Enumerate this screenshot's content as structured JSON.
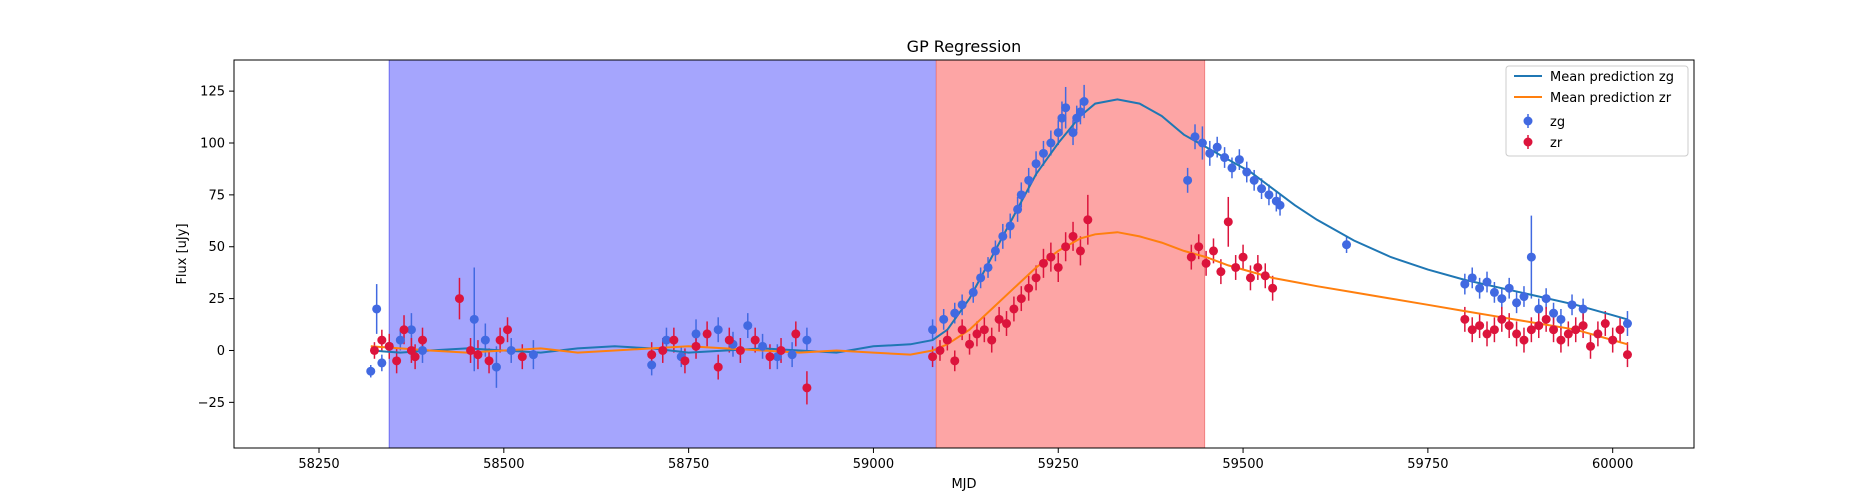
{
  "chart_data": {
    "type": "scatter",
    "title": "GP Regression",
    "xlabel": "MJD",
    "ylabel": "Flux [uJy]",
    "xlim": [
      58135,
      60110
    ],
    "ylim": [
      -47,
      140
    ],
    "xticks": [
      58250,
      58500,
      58750,
      59000,
      59250,
      59500,
      59750,
      60000
    ],
    "yticks": [
      -25,
      0,
      25,
      50,
      75,
      100,
      125
    ],
    "grid": false,
    "legend_position": "top-right",
    "colors": {
      "zg_line": "#1f77b4",
      "zr_line": "#ff7f0e",
      "zg_points": "#4169e1",
      "zr_points": "#dc143c",
      "band_blue": "#a5a5fd",
      "band_red": "#fda5a5",
      "band_overlap": "#c36aa6"
    },
    "shaded_regions": [
      {
        "x": [
          58345,
          59085
        ],
        "color": "blue"
      },
      {
        "x": [
          59085,
          59448
        ],
        "color": "red"
      }
    ],
    "series": [
      {
        "name": "Mean prediction zg",
        "kind": "line",
        "x": [
          58320,
          58360,
          58400,
          58450,
          58500,
          58550,
          58600,
          58650,
          58700,
          58750,
          58800,
          58850,
          58900,
          58950,
          59000,
          59050,
          59080,
          59100,
          59130,
          59160,
          59190,
          59220,
          59250,
          59280,
          59300,
          59330,
          59360,
          59390,
          59420,
          59450,
          59480,
          59510,
          59540,
          59570,
          59600,
          59650,
          59700,
          59750,
          59800,
          59850,
          59900,
          59950,
          60000,
          60020
        ],
        "y": [
          0,
          -1,
          0,
          1,
          0,
          -1,
          1,
          2,
          1,
          -1,
          0,
          1,
          0,
          -1,
          2,
          3,
          5,
          10,
          25,
          45,
          65,
          85,
          100,
          113,
          119,
          121,
          119,
          113,
          104,
          98,
          92,
          86,
          78,
          70,
          63,
          53,
          45,
          39,
          34,
          30,
          26,
          22,
          17,
          15
        ]
      },
      {
        "name": "Mean prediction zr",
        "kind": "line",
        "x": [
          58320,
          58360,
          58400,
          58450,
          58500,
          58550,
          58600,
          58650,
          58700,
          58750,
          58800,
          58850,
          58900,
          58950,
          59000,
          59050,
          59080,
          59100,
          59130,
          59160,
          59190,
          59220,
          59250,
          59280,
          59300,
          59330,
          59360,
          59390,
          59420,
          59450,
          59480,
          59510,
          59540,
          59570,
          59600,
          59650,
          59700,
          59750,
          59800,
          59850,
          59900,
          59950,
          60000,
          60020
        ],
        "y": [
          2,
          1,
          0,
          -1,
          0,
          1,
          -1,
          0,
          1,
          2,
          1,
          0,
          -1,
          0,
          -1,
          -2,
          0,
          3,
          10,
          20,
          30,
          40,
          48,
          54,
          56,
          57,
          55,
          52,
          48,
          45,
          41,
          38,
          35,
          33,
          31,
          28,
          25,
          22,
          19,
          16,
          13,
          10,
          5,
          3
        ]
      },
      {
        "name": "zg",
        "kind": "errorbar",
        "x": [
          58320,
          58328,
          58335,
          58345,
          58360,
          58375,
          58390,
          58460,
          58475,
          58490,
          58510,
          58540,
          58700,
          58720,
          58740,
          58760,
          58790,
          58810,
          58830,
          58850,
          58870,
          58890,
          58910,
          59080,
          59095,
          59110,
          59120,
          59135,
          59145,
          59155,
          59165,
          59175,
          59185,
          59195,
          59200,
          59210,
          59220,
          59230,
          59240,
          59250,
          59255,
          59260,
          59270,
          59275,
          59280,
          59285,
          59425,
          59435,
          59445,
          59455,
          59465,
          59475,
          59485,
          59495,
          59505,
          59515,
          59525,
          59535,
          59545,
          59550,
          59640,
          59800,
          59810,
          59820,
          59830,
          59840,
          59850,
          59860,
          59870,
          59880,
          59890,
          59900,
          59910,
          59920,
          59930,
          59945,
          59960,
          60020
        ],
        "y": [
          -10,
          20,
          -6,
          2,
          5,
          10,
          0,
          15,
          5,
          -8,
          0,
          -2,
          -7,
          5,
          -3,
          8,
          10,
          3,
          12,
          2,
          -3,
          -2,
          5,
          10,
          15,
          18,
          22,
          28,
          35,
          40,
          48,
          55,
          60,
          68,
          75,
          82,
          90,
          95,
          100,
          105,
          112,
          117,
          105,
          112,
          115,
          120,
          82,
          103,
          100,
          95,
          98,
          93,
          88,
          92,
          86,
          82,
          78,
          75,
          72,
          70,
          51,
          32,
          35,
          30,
          33,
          28,
          25,
          30,
          23,
          26,
          45,
          20,
          25,
          18,
          15,
          22,
          20,
          13
        ],
        "yerr": [
          3,
          12,
          4,
          6,
          5,
          8,
          6,
          25,
          8,
          10,
          6,
          7,
          5,
          6,
          5,
          7,
          6,
          6,
          6,
          6,
          6,
          6,
          6,
          5,
          5,
          5,
          5,
          5,
          5,
          5,
          5,
          6,
          6,
          6,
          6,
          6,
          6,
          6,
          6,
          6,
          8,
          10,
          6,
          6,
          6,
          8,
          6,
          6,
          8,
          6,
          5,
          5,
          5,
          5,
          5,
          5,
          5,
          5,
          5,
          5,
          4,
          5,
          5,
          5,
          5,
          5,
          5,
          5,
          5,
          5,
          20,
          5,
          5,
          5,
          5,
          5,
          5,
          6
        ]
      },
      {
        "name": "zr",
        "kind": "errorbar",
        "x": [
          58325,
          58335,
          58345,
          58355,
          58365,
          58375,
          58380,
          58390,
          58440,
          58455,
          58465,
          58480,
          58495,
          58505,
          58525,
          58700,
          58715,
          58730,
          58745,
          58760,
          58775,
          58790,
          58805,
          58820,
          58840,
          58860,
          58875,
          58895,
          58910,
          59080,
          59090,
          59100,
          59110,
          59120,
          59130,
          59140,
          59150,
          59160,
          59170,
          59180,
          59190,
          59200,
          59210,
          59220,
          59230,
          59240,
          59250,
          59260,
          59270,
          59280,
          59290,
          59430,
          59440,
          59450,
          59460,
          59470,
          59480,
          59490,
          59500,
          59510,
          59520,
          59530,
          59540,
          59800,
          59810,
          59820,
          59830,
          59840,
          59850,
          59860,
          59870,
          59880,
          59890,
          59900,
          59910,
          59920,
          59930,
          59940,
          59950,
          59960,
          59970,
          59980,
          59990,
          60000,
          60010,
          60020
        ],
        "y": [
          0,
          5,
          2,
          -5,
          10,
          0,
          -3,
          5,
          25,
          0,
          -2,
          -5,
          5,
          10,
          -3,
          -2,
          0,
          5,
          -5,
          2,
          8,
          -8,
          5,
          0,
          5,
          -3,
          0,
          8,
          -18,
          -3,
          0,
          5,
          -5,
          10,
          3,
          8,
          10,
          5,
          15,
          13,
          20,
          25,
          30,
          35,
          42,
          45,
          40,
          50,
          55,
          48,
          63,
          45,
          50,
          42,
          48,
          38,
          62,
          40,
          45,
          35,
          40,
          36,
          30,
          15,
          10,
          12,
          8,
          10,
          15,
          12,
          8,
          5,
          10,
          12,
          15,
          10,
          5,
          8,
          10,
          12,
          2,
          8,
          13,
          5,
          10,
          -2
        ],
        "yerr": [
          4,
          5,
          6,
          6,
          7,
          6,
          6,
          6,
          10,
          6,
          7,
          6,
          6,
          6,
          6,
          6,
          6,
          6,
          6,
          6,
          6,
          6,
          6,
          6,
          6,
          6,
          6,
          6,
          8,
          5,
          5,
          5,
          5,
          5,
          5,
          6,
          6,
          6,
          6,
          6,
          6,
          6,
          6,
          6,
          7,
          7,
          7,
          7,
          7,
          7,
          12,
          6,
          6,
          6,
          6,
          6,
          12,
          6,
          6,
          6,
          6,
          6,
          6,
          6,
          6,
          6,
          6,
          6,
          6,
          6,
          6,
          6,
          6,
          6,
          6,
          6,
          6,
          6,
          6,
          6,
          6,
          6,
          6,
          6,
          6,
          6
        ]
      }
    ]
  }
}
